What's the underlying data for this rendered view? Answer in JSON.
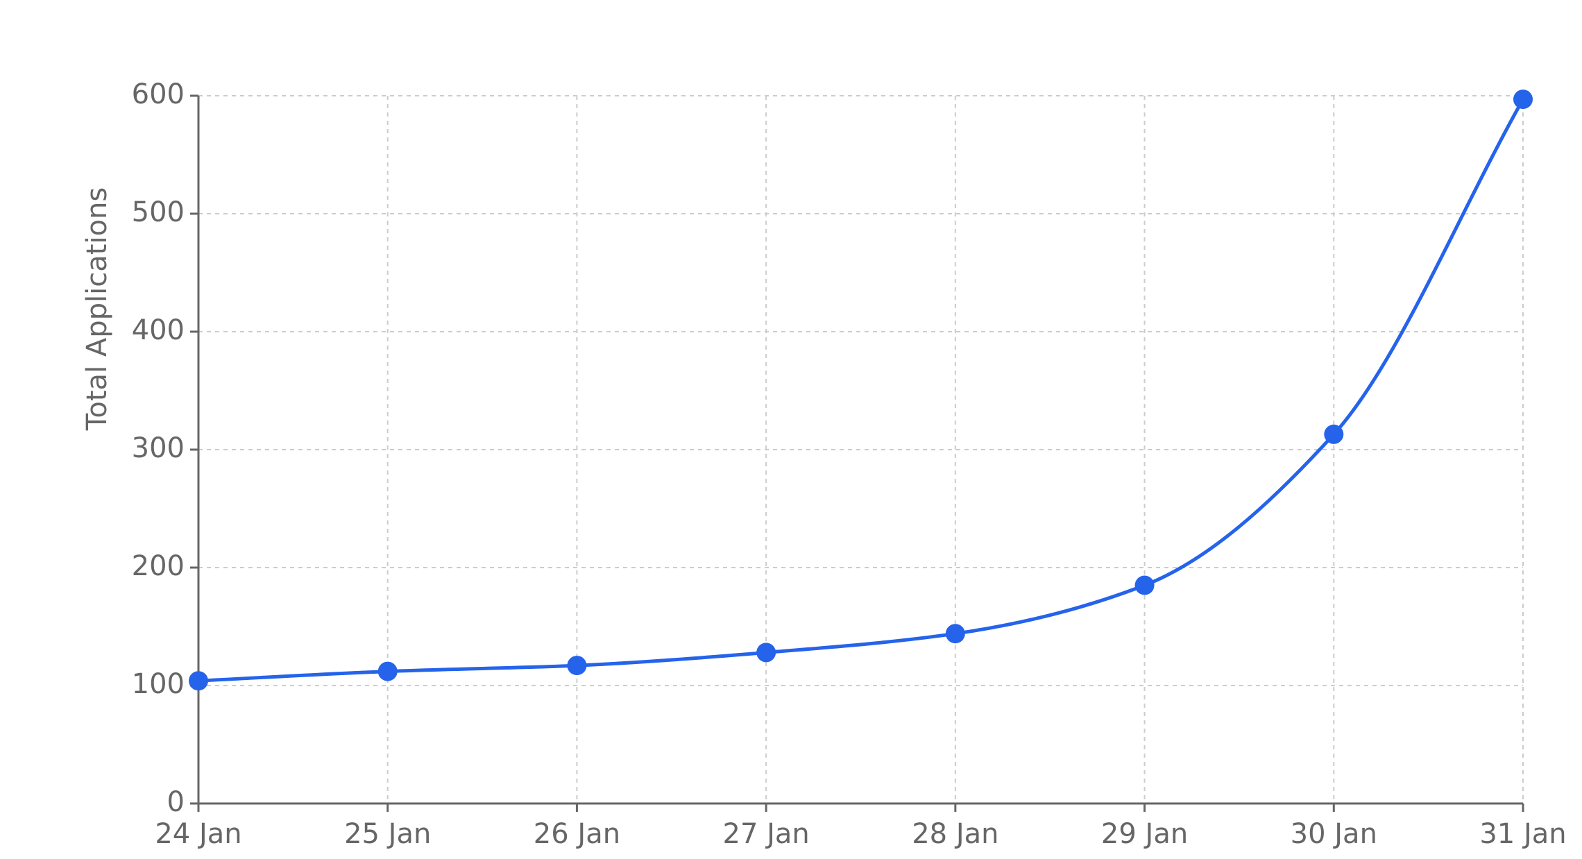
{
  "chart_data": {
    "type": "line",
    "y_label": "Total Applications",
    "categories": [
      "24 Jan",
      "25 Jan",
      "26 Jan",
      "27 Jan",
      "28 Jan",
      "29 Jan",
      "30 Jan",
      "31 Jan"
    ],
    "series": [
      {
        "name": "Total Applications",
        "color": "#2563eb",
        "values": [
          104,
          112,
          117,
          128,
          144,
          185,
          313,
          597
        ]
      }
    ],
    "ylim": [
      0,
      600
    ],
    "yticks": [
      0,
      100,
      200,
      300,
      400,
      500,
      600
    ],
    "grid": true,
    "smooth": true
  }
}
